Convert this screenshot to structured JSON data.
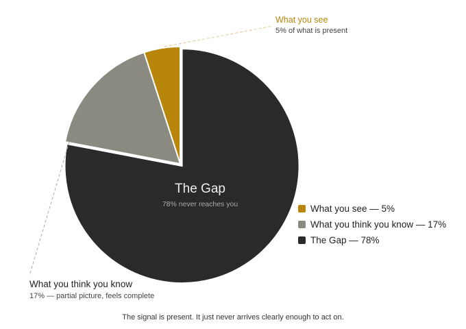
{
  "chart_data": {
    "type": "pie",
    "slices": [
      {
        "label": "What you see",
        "value": 5,
        "color": "#b8860b"
      },
      {
        "label": "What you think you know",
        "value": 17,
        "color": "#8a8a80"
      },
      {
        "label": "The Gap",
        "value": 78,
        "color": "#2a2a2a"
      }
    ],
    "center_label": "The Gap",
    "center_sublabel": "78% never reaches you",
    "annotations": [
      {
        "title": "What you see",
        "text": "5% of what is present"
      },
      {
        "title": "What you think you know",
        "text": "17% — partial picture, feels complete"
      }
    ],
    "legend": [
      "What you see — 5%",
      "What you think you know — 17%",
      "The Gap — 78%"
    ],
    "legend_placement": "right",
    "caption": "The signal is present. It just never arrives clearly enough to act on."
  }
}
